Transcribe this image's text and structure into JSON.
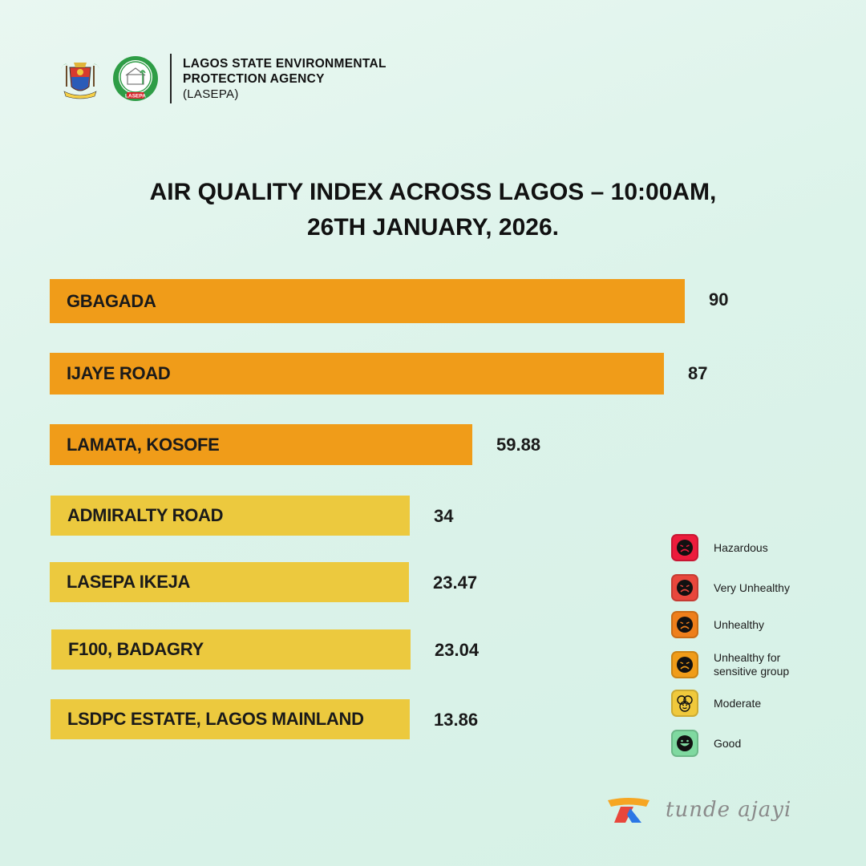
{
  "header": {
    "agency_line1": "LAGOS STATE ENVIRONMENTAL",
    "agency_line2": "PROTECTION AGENCY",
    "agency_abbr": "(LASEPA)",
    "logo_text": "LASEPA"
  },
  "chart_data": {
    "type": "bar",
    "orientation": "horizontal",
    "title_line1": "AIR QUALITY INDEX ACROSS LAGOS – 10:00AM,",
    "title_line2": "26TH JANUARY, 2026.",
    "categories": [
      "GBAGADA",
      "IJAYE ROAD",
      "LAMATA, KOSOFE",
      "ADMIRALTY ROAD",
      "LASEPA IKEJA",
      "F100, BADAGRY",
      "LSDPC ESTATE, LAGOS MAINLAND"
    ],
    "values": [
      90,
      87,
      59.88,
      34,
      23.47,
      23.04,
      13.86
    ],
    "value_labels": [
      "90",
      "87",
      "59.88",
      "34",
      "23.47",
      "23.04",
      "13.86"
    ],
    "bar_colors": [
      "#f09c19",
      "#f09c19",
      "#f09c19",
      "#ecc93e",
      "#ecc93e",
      "#ecc93e",
      "#ecc93e"
    ],
    "grid": false
  },
  "legend": {
    "items": [
      {
        "label": "Hazardous",
        "color": "#ec1c3c",
        "icon": "frown-face-icon"
      },
      {
        "label": "Very Unhealthy",
        "color": "#e8473c",
        "icon": "frown-face-icon"
      },
      {
        "label": "Unhealthy",
        "color": "#ee7f1b",
        "icon": "frown-face-icon"
      },
      {
        "label": "Unhealthy for sensitive group",
        "color": "#f09c19",
        "icon": "frown-face-icon"
      },
      {
        "label": "Moderate",
        "color": "#f0c93c",
        "icon": "neutral-faces-icon"
      },
      {
        "label": "Good",
        "color": "#7fd9a0",
        "icon": "smile-face-icon"
      }
    ]
  },
  "footer": {
    "signature": "tunde ajayi",
    "accent_colors": [
      "#f6a623",
      "#e8473c",
      "#2b77e5"
    ]
  }
}
